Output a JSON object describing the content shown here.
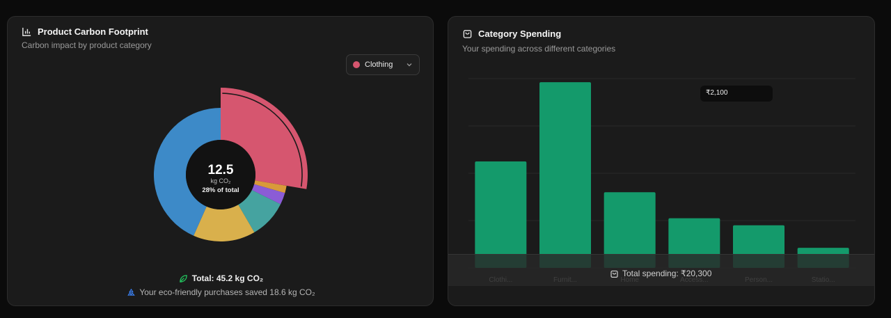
{
  "carbon_card": {
    "title": "Product Carbon Footprint",
    "subtitle": "Carbon impact by product category",
    "select": {
      "selected": "Clothing",
      "selected_color": "#d6566f"
    },
    "center": {
      "value": "12.5",
      "unit": "kg CO₂",
      "share": "28% of total"
    },
    "total": "Total: 45.2 kg CO₂",
    "saved": "Your eco-friendly purchases saved 18.6 kg CO₂",
    "colors": {
      "leaf": "#22c55e",
      "recycle": "#3b82f6"
    }
  },
  "spend_card": {
    "title": "Category Spending",
    "subtitle": "Your spending across different categories",
    "tooltip": "₹2,100",
    "total": "Total spending: ₹20,300",
    "bar_color": "#149a6b"
  },
  "chart_data": [
    {
      "type": "pie",
      "title": "Product Carbon Footprint",
      "unit": "kg CO2",
      "highlighted": "Clothing",
      "slices": [
        {
          "label": "Clothing",
          "value": 12.5,
          "color": "#d6566f"
        },
        {
          "value": 0.8,
          "color": "#d99a3a"
        },
        {
          "value": 1.3,
          "color": "#8b5cd6"
        },
        {
          "value": 4.2,
          "color": "#45a3a0"
        },
        {
          "value": 6.8,
          "color": "#d9b04c"
        },
        {
          "value": 19.6,
          "color": "#3d8ac8"
        }
      ]
    },
    {
      "type": "bar",
      "title": "Category Spending",
      "categories": [
        "Clothi...",
        "Furnit...",
        "Home",
        "Access...",
        "Person...",
        "Statio..."
      ],
      "values": [
        4500,
        7850,
        3200,
        2100,
        1800,
        850
      ],
      "ylim": [
        0,
        8000
      ],
      "grid": true
    }
  ]
}
